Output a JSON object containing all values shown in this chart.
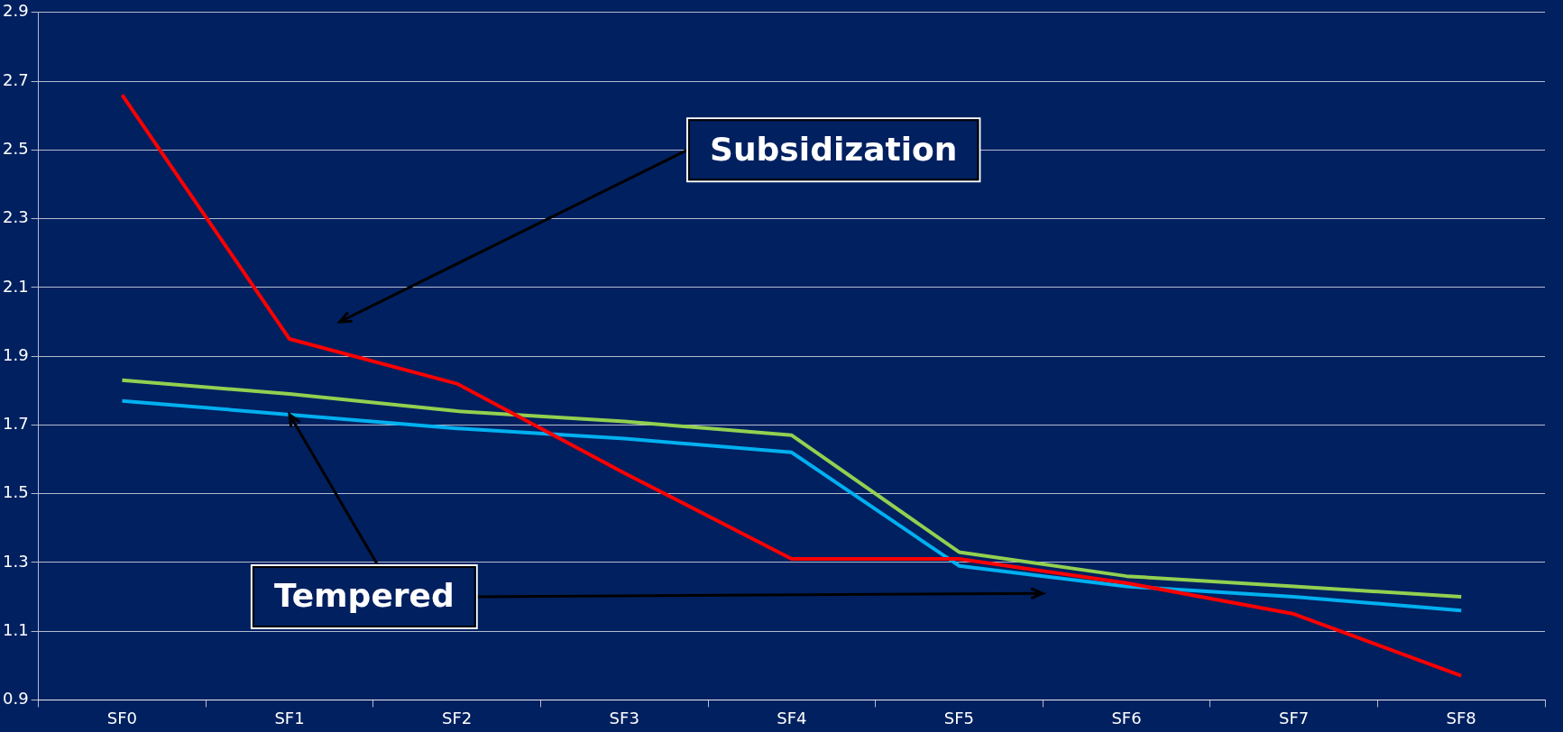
{
  "chart_data": {
    "type": "line",
    "categories": [
      "SF0",
      "SF1",
      "SF2",
      "SF3",
      "SF4",
      "SF5",
      "SF6",
      "SF7",
      "SF8"
    ],
    "series": [
      {
        "color": "#ff0000",
        "values": [
          2.66,
          1.95,
          1.82,
          1.56,
          1.31,
          1.31,
          1.24,
          1.15,
          0.97
        ]
      },
      {
        "color": "#92d050",
        "values": [
          1.83,
          1.79,
          1.74,
          1.71,
          1.67,
          1.33,
          1.26,
          1.23,
          1.2
        ]
      },
      {
        "color": "#00b0f0",
        "values": [
          1.77,
          1.73,
          1.69,
          1.66,
          1.62,
          1.29,
          1.23,
          1.2,
          1.16
        ]
      }
    ],
    "ylim": [
      0.9,
      2.9
    ],
    "yticks": [
      0.9,
      1.1,
      1.3,
      1.5,
      1.7,
      1.9,
      2.1,
      2.3,
      2.5,
      2.7,
      2.9
    ],
    "grid": "y",
    "legend": false,
    "marker": "none",
    "line_style": "solid",
    "annotations": [
      "Subsidization",
      {
        "text": "Tempered",
        "x": "SF1",
        "y": 1.73
      }
    ]
  }
}
